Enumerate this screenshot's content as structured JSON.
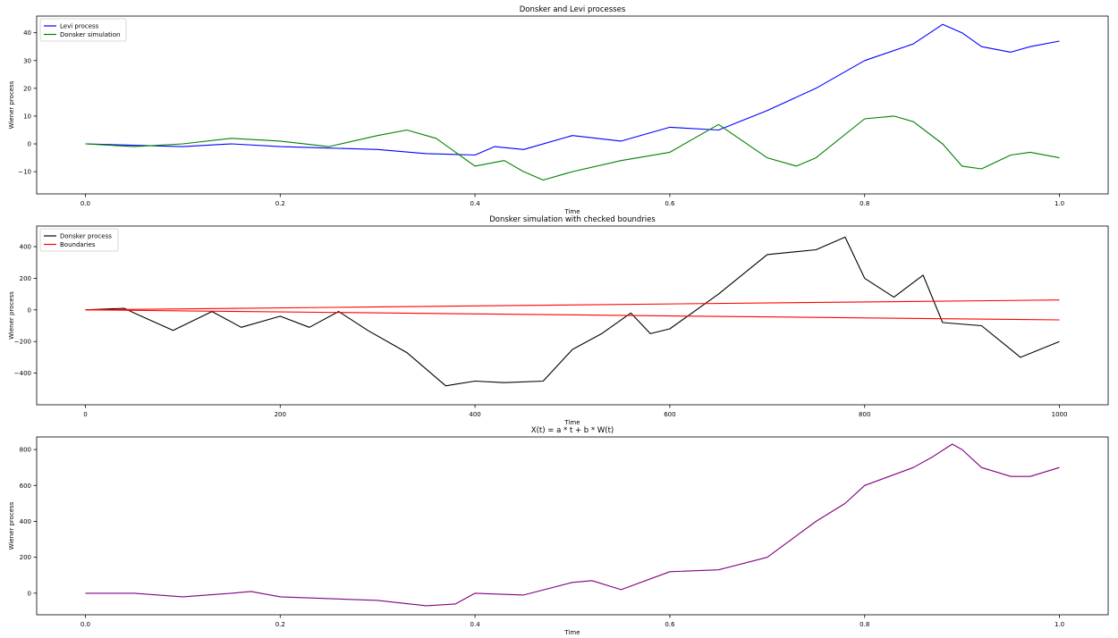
{
  "chart_data": [
    {
      "type": "line",
      "title": "Donsker and Levi processes",
      "xlabel": "Time",
      "ylabel": "Wiener process",
      "xlim": [
        -0.05,
        1.05
      ],
      "ylim": [
        -18,
        46
      ],
      "xticks": [
        0.0,
        0.2,
        0.4,
        0.6,
        0.8,
        1.0
      ],
      "xtick_labels": [
        "0.0",
        "0.2",
        "0.4",
        "0.6",
        "0.8",
        "1.0"
      ],
      "yticks": [
        -10,
        0,
        10,
        20,
        30,
        40
      ],
      "ytick_labels": [
        "−10",
        "0",
        "10",
        "20",
        "30",
        "40"
      ],
      "legend_loc": "upper-left",
      "series": [
        {
          "name": "Levi process",
          "color": "#0000ff",
          "x": [
            0.0,
            0.05,
            0.1,
            0.15,
            0.2,
            0.25,
            0.3,
            0.35,
            0.4,
            0.42,
            0.45,
            0.5,
            0.55,
            0.6,
            0.65,
            0.7,
            0.75,
            0.8,
            0.85,
            0.88,
            0.9,
            0.92,
            0.95,
            0.97,
            1.0
          ],
          "y": [
            0,
            -0.5,
            -1,
            0,
            -1,
            -1.5,
            -2,
            -3.5,
            -4,
            -1,
            -2,
            3,
            1,
            6,
            5,
            12,
            20,
            30,
            36,
            43,
            40,
            35,
            33,
            35,
            37
          ]
        },
        {
          "name": "Donsker simulation",
          "color": "#008000",
          "x": [
            0.0,
            0.05,
            0.1,
            0.15,
            0.2,
            0.25,
            0.3,
            0.33,
            0.36,
            0.4,
            0.43,
            0.45,
            0.47,
            0.5,
            0.55,
            0.6,
            0.65,
            0.7,
            0.73,
            0.75,
            0.8,
            0.83,
            0.85,
            0.88,
            0.9,
            0.92,
            0.95,
            0.97,
            1.0
          ],
          "y": [
            0,
            -1,
            0,
            2,
            1,
            -1,
            3,
            5,
            2,
            -8,
            -6,
            -10,
            -13,
            -10,
            -6,
            -3,
            7,
            -5,
            -8,
            -5,
            9,
            10,
            8,
            0,
            -8,
            -9,
            -4,
            -3,
            -5
          ]
        }
      ]
    },
    {
      "type": "line",
      "title": "Donsker simulation with checked boundries",
      "xlabel": "Time",
      "ylabel": "Wiener process",
      "xlim": [
        -50,
        1050
      ],
      "ylim": [
        -600,
        530
      ],
      "xticks": [
        0,
        200,
        400,
        600,
        800,
        1000
      ],
      "xtick_labels": [
        "0",
        "200",
        "400",
        "600",
        "800",
        "1000"
      ],
      "yticks": [
        -400,
        -200,
        0,
        200,
        400
      ],
      "ytick_labels": [
        "−400",
        "−200",
        "0",
        "200",
        "400"
      ],
      "legend_loc": "upper-left",
      "series": [
        {
          "name": "Donsker process",
          "color": "#000000",
          "x": [
            0,
            40,
            50,
            90,
            130,
            160,
            200,
            230,
            260,
            290,
            330,
            370,
            400,
            430,
            470,
            500,
            530,
            560,
            580,
            600,
            650,
            700,
            750,
            780,
            800,
            830,
            860,
            880,
            920,
            960,
            1000
          ],
          "y": [
            0,
            10,
            -20,
            -130,
            -10,
            -110,
            -40,
            -110,
            -10,
            -130,
            -270,
            -480,
            -450,
            -460,
            -450,
            -250,
            -150,
            -20,
            -150,
            -120,
            100,
            350,
            380,
            460,
            200,
            80,
            220,
            -80,
            -100,
            -300,
            -200
          ]
        },
        {
          "name": "Boundaries",
          "color": "#ff0000",
          "x": [
            0,
            1000
          ],
          "y": [
            0,
            63
          ]
        },
        {
          "name": "",
          "color": "#ff0000",
          "x": [
            0,
            1000
          ],
          "y": [
            0,
            -63
          ]
        }
      ]
    },
    {
      "type": "line",
      "title": "X(t) = a * t + b * W(t)",
      "xlabel": "Time",
      "ylabel": "Wiener process",
      "xlim": [
        -0.05,
        1.05
      ],
      "ylim": [
        -120,
        870
      ],
      "xticks": [
        0.0,
        0.2,
        0.4,
        0.6,
        0.8,
        1.0
      ],
      "xtick_labels": [
        "0.0",
        "0.2",
        "0.4",
        "0.6",
        "0.8",
        "1.0"
      ],
      "yticks": [
        0,
        200,
        400,
        600,
        800
      ],
      "ytick_labels": [
        "0",
        "200",
        "400",
        "600",
        "800"
      ],
      "series": [
        {
          "name": "",
          "color": "#800080",
          "x": [
            0.0,
            0.05,
            0.1,
            0.15,
            0.17,
            0.2,
            0.25,
            0.3,
            0.35,
            0.38,
            0.4,
            0.45,
            0.5,
            0.52,
            0.55,
            0.6,
            0.65,
            0.7,
            0.75,
            0.78,
            0.8,
            0.85,
            0.87,
            0.89,
            0.9,
            0.92,
            0.95,
            0.97,
            1.0
          ],
          "y": [
            0,
            0,
            -20,
            0,
            10,
            -20,
            -30,
            -40,
            -70,
            -60,
            0,
            -10,
            60,
            70,
            20,
            120,
            130,
            200,
            400,
            500,
            600,
            700,
            760,
            830,
            800,
            700,
            650,
            650,
            700
          ]
        }
      ]
    }
  ]
}
